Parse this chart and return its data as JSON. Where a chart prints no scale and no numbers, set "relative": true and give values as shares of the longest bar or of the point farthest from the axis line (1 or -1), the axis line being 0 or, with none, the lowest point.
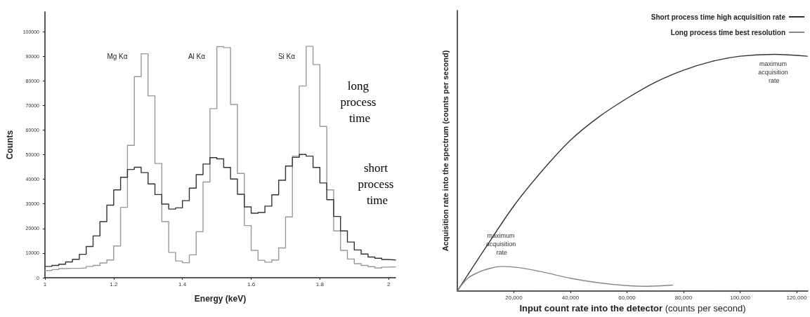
{
  "chart_data": [
    {
      "type": "histogram",
      "xlabel": "Energy (keV)",
      "ylabel": "Counts",
      "bins": [
        1.0,
        1.02,
        1.04,
        1.06,
        1.08,
        1.1,
        1.12,
        1.14,
        1.16,
        1.18,
        1.2,
        1.22,
        1.24,
        1.26,
        1.28,
        1.3,
        1.32,
        1.34,
        1.36,
        1.38,
        1.4,
        1.42,
        1.44,
        1.46,
        1.48,
        1.5,
        1.52,
        1.54,
        1.56,
        1.58,
        1.6,
        1.62,
        1.64,
        1.66,
        1.68,
        1.7,
        1.72,
        1.74,
        1.76,
        1.78,
        1.8,
        1.82,
        1.84,
        1.86,
        1.88,
        1.9,
        1.92,
        1.94,
        1.96,
        1.98,
        2.0,
        2.02
      ],
      "series": [
        {
          "name": "long process time",
          "color": "#999999",
          "values": [
            2900,
            3300,
            3700,
            3800,
            3800,
            4000,
            4600,
            5000,
            6000,
            7200,
            12900,
            28600,
            53800,
            81700,
            91000,
            73900,
            46400,
            22800,
            10300,
            6800,
            6100,
            9300,
            18700,
            38900,
            68700,
            93900,
            93500,
            70400,
            42400,
            21200,
            11100,
            7100,
            6300,
            7200,
            12100,
            24700,
            49400,
            77900,
            94000,
            86600,
            61500,
            35700,
            19000,
            11100,
            7600,
            5700,
            5000,
            4500,
            4000,
            4300,
            4400
          ]
        },
        {
          "name": "short process time",
          "color": "#333333",
          "values": [
            4600,
            5000,
            5500,
            6400,
            7500,
            9500,
            12700,
            17000,
            22800,
            29500,
            35700,
            40800,
            44000,
            44900,
            42700,
            38100,
            33800,
            29900,
            27900,
            28400,
            31300,
            36400,
            41900,
            46200,
            48800,
            48300,
            44800,
            40100,
            33900,
            28800,
            26200,
            26500,
            29100,
            33700,
            39600,
            45400,
            48900,
            50100,
            49400,
            44800,
            38500,
            31700,
            24900,
            19000,
            14500,
            11300,
            9600,
            8400,
            7900,
            7400,
            7200
          ]
        }
      ],
      "xlim": [
        1,
        2.02
      ],
      "xticks": [
        1,
        1.2,
        1.4,
        1.6,
        1.8,
        2
      ],
      "ylim": [
        0,
        108000
      ],
      "yticks": [
        0,
        10000,
        20000,
        30000,
        40000,
        50000,
        60000,
        70000,
        80000,
        90000,
        100000
      ],
      "annotations": [
        "Mg Kα",
        "Al Kα",
        "Si Kα"
      ],
      "legend": false
    },
    {
      "type": "line",
      "relative": true,
      "xlabel": "Input count rate into the detector (counts per second)",
      "ylabel": "Acquisition rate into the spectrum (counts per second)",
      "series": [
        {
          "name": "Short process time high acquisition rate",
          "color": "#333333",
          "x": [
            0,
            10000,
            20000,
            30000,
            40000,
            50000,
            60000,
            70000,
            80000,
            90000,
            100000,
            112000,
            123800
          ],
          "values": [
            0,
            0.183,
            0.36,
            0.508,
            0.637,
            0.735,
            0.814,
            0.882,
            0.933,
            0.97,
            0.992,
            1.0,
            0.992
          ]
        },
        {
          "name": "Long process time best resolution",
          "color": "#888888",
          "x": [
            0,
            3700,
            7800,
            12000,
            15700,
            21800,
            30000,
            40000,
            50000,
            60000,
            67000,
            76100
          ],
          "values": [
            0,
            0.054,
            0.081,
            0.097,
            0.104,
            0.099,
            0.081,
            0.054,
            0.035,
            0.023,
            0.02,
            0.025
          ]
        }
      ],
      "xlim": [
        0,
        124000
      ],
      "xticks": [
        {
          "value": 20000,
          "label": "20,000"
        },
        {
          "value": 40000,
          "label": "40,000"
        },
        {
          "value": 60000,
          "label": "60,000"
        },
        {
          "value": 80000,
          "label": "80,000"
        },
        {
          "value": 100000,
          "label": "100,000"
        },
        {
          "value": 120000,
          "label": "120,000"
        }
      ],
      "annotations": [
        {
          "text": "maximum acquisition rate",
          "x": 112000,
          "y": 1.0
        },
        {
          "text": "maximum acquisition rate",
          "x": 15700,
          "y": 0.104
        }
      ],
      "legend": "top right",
      "marker": "none",
      "line_style": "solid"
    }
  ]
}
